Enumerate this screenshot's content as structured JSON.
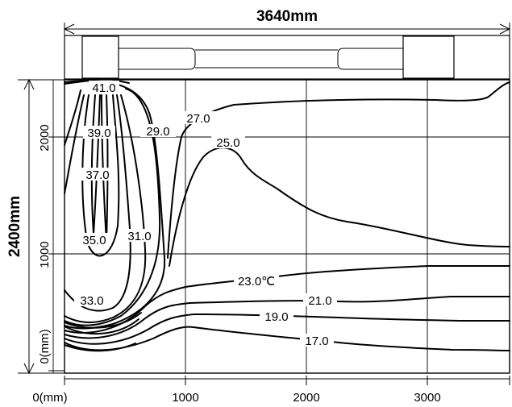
{
  "width_label": "3640mm",
  "height_label": "2400mm",
  "x_ticks": [
    "0(mm)",
    "1000",
    "2000",
    "3000"
  ],
  "y_ticks": [
    "0(mm)",
    "1000",
    "2000"
  ],
  "isotherm_labels": {
    "t41": "41.0",
    "t39": "39.0",
    "t37": "37.0",
    "t35": "35.0",
    "t33": "33.0",
    "t31": "31.0",
    "t29": "29.0",
    "t27": "27.0",
    "t25": "25.0",
    "t23": "23.0℃",
    "t21": "21.0",
    "t19": "19.0",
    "t17": "17.0"
  }
}
